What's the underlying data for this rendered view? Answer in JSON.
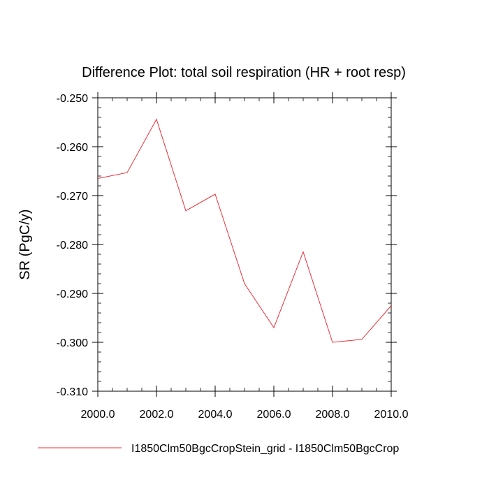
{
  "chart_data": {
    "type": "line",
    "title": "Difference Plot: total soil respiration (HR + root resp)",
    "xlabel": "",
    "ylabel": "SR  (PgC/y)",
    "xlim": [
      2000,
      2010
    ],
    "ylim": [
      -0.31,
      -0.25
    ],
    "x_ticks": [
      2000,
      2002,
      2004,
      2006,
      2008,
      2010
    ],
    "x_tick_labels": [
      "2000.0",
      "2002.0",
      "2004.0",
      "2006.0",
      "2008.0",
      "2010.0"
    ],
    "y_ticks": [
      -0.25,
      -0.26,
      -0.27,
      -0.28,
      -0.29,
      -0.3,
      -0.31
    ],
    "y_tick_labels": [
      "-0.250",
      "-0.260",
      "-0.270",
      "-0.280",
      "-0.290",
      "-0.300",
      "-0.310"
    ],
    "grid": false,
    "legend": "bottom",
    "series": [
      {
        "name": "I1850Clm50BgcCropStein_grid - I1850Clm50BgcCrop",
        "color": "#e8303a",
        "x": [
          2000,
          2001,
          2002,
          2003,
          2004,
          2005,
          2006,
          2007,
          2008,
          2009,
          2010
        ],
        "y": [
          -0.2665,
          -0.2653,
          -0.2544,
          -0.2731,
          -0.2697,
          -0.288,
          -0.297,
          -0.2815,
          -0.3,
          -0.2994,
          -0.2925
        ]
      }
    ]
  }
}
